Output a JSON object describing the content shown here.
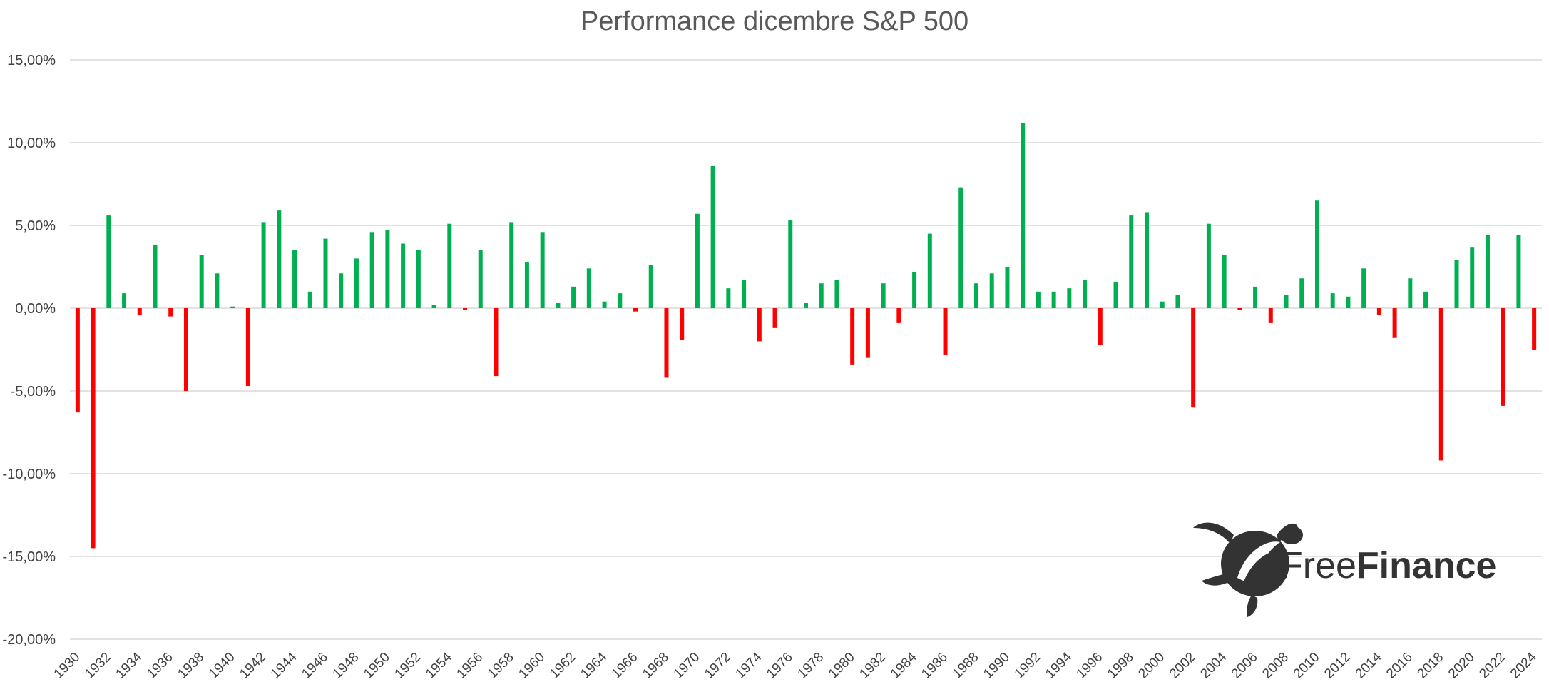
{
  "chart_data": {
    "type": "bar",
    "title": "Performance dicembre S&P 500",
    "xlabel": "",
    "ylabel": "",
    "ylim": [
      -20,
      15
    ],
    "yticks": [
      15,
      10,
      5,
      0,
      -5,
      -10,
      -15,
      -20
    ],
    "ytick_labels": [
      "15,00%",
      "10,00%",
      "5,00%",
      "0,00%",
      "-5,00%",
      "-10,00%",
      "-15,00%",
      "-20,00%"
    ],
    "positive_color": "#00b050",
    "negative_color": "#ff0000",
    "categories": [
      1930,
      1931,
      1932,
      1933,
      1934,
      1935,
      1936,
      1937,
      1938,
      1939,
      1940,
      1941,
      1942,
      1943,
      1944,
      1945,
      1946,
      1947,
      1948,
      1949,
      1950,
      1951,
      1952,
      1953,
      1954,
      1955,
      1956,
      1957,
      1958,
      1959,
      1960,
      1961,
      1962,
      1963,
      1964,
      1965,
      1966,
      1967,
      1968,
      1969,
      1970,
      1971,
      1972,
      1973,
      1974,
      1975,
      1976,
      1977,
      1978,
      1979,
      1980,
      1981,
      1982,
      1983,
      1984,
      1985,
      1986,
      1987,
      1988,
      1989,
      1990,
      1991,
      1992,
      1993,
      1994,
      1995,
      1996,
      1997,
      1998,
      1999,
      2000,
      2001,
      2002,
      2003,
      2004,
      2005,
      2006,
      2007,
      2008,
      2009,
      2010,
      2011,
      2012,
      2013,
      2014,
      2015,
      2016,
      2017,
      2018,
      2019,
      2020,
      2021,
      2022,
      2023,
      2024
    ],
    "values": [
      -6.3,
      -14.5,
      5.6,
      0.9,
      -0.4,
      3.8,
      -0.5,
      -5.0,
      3.2,
      2.1,
      0.1,
      -4.7,
      5.2,
      5.9,
      3.5,
      1.0,
      4.2,
      2.1,
      3.0,
      4.6,
      4.7,
      3.9,
      3.5,
      0.2,
      5.1,
      -0.1,
      3.5,
      -4.1,
      5.2,
      2.8,
      4.6,
      0.3,
      1.3,
      2.4,
      0.4,
      0.9,
      -0.2,
      2.6,
      -4.2,
      -1.9,
      5.7,
      8.6,
      1.2,
      1.7,
      -2.0,
      -1.2,
      5.3,
      0.3,
      1.5,
      1.7,
      -3.4,
      -3.0,
      1.5,
      -0.9,
      2.2,
      4.5,
      -2.8,
      7.3,
      1.5,
      2.1,
      2.5,
      11.2,
      1.0,
      1.0,
      1.2,
      1.7,
      -2.2,
      1.6,
      5.6,
      5.8,
      0.4,
      0.8,
      -6.0,
      5.1,
      3.2,
      -0.1,
      1.3,
      -0.9,
      0.8,
      1.8,
      6.5,
      0.9,
      0.7,
      2.4,
      -0.4,
      -1.8,
      1.8,
      1.0,
      -9.2,
      2.9,
      3.7,
      4.4,
      -5.9,
      4.4,
      -2.5
    ],
    "xtick_labels": [
      "1930",
      "1932",
      "1934",
      "1936",
      "1938",
      "1940",
      "1942",
      "1944",
      "1946",
      "1948",
      "1950",
      "1952",
      "1954",
      "1956",
      "1958",
      "1960",
      "1962",
      "1964",
      "1966",
      "1968",
      "1970",
      "1972",
      "1974",
      "1976",
      "1978",
      "1980",
      "1982",
      "1984",
      "1986",
      "1988",
      "1990",
      "1992",
      "1994",
      "1996",
      "1998",
      "2000",
      "2002",
      "2004",
      "2006",
      "2008",
      "2010",
      "2012",
      "2014",
      "2016",
      "2018",
      "2020",
      "2022",
      "2024"
    ],
    "legend": "none",
    "grid": true
  },
  "brand": {
    "name_light": "Free",
    "name_bold": "Finance",
    "logo_icon": "sea-turtle-icon"
  }
}
